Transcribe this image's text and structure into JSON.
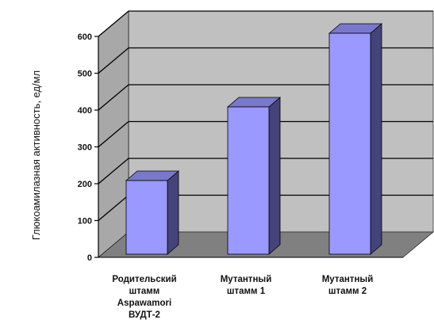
{
  "chart_data": {
    "type": "bar",
    "title": "",
    "xlabel": "",
    "ylabel": "Глюкоамилазная активность, ед/мл",
    "ylim": [
      0,
      600
    ],
    "yticks": [
      0,
      100,
      200,
      300,
      400,
      500,
      600
    ],
    "grid": true,
    "three_d": true,
    "categories": [
      [
        "Родительский",
        "штамм",
        "Aspawamori",
        "ВУДТ-2"
      ],
      [
        "Мутантный",
        "штамм 1"
      ],
      [
        "Мутантный",
        "штамм 2"
      ]
    ],
    "values": [
      200,
      400,
      600
    ],
    "colors": {
      "bar_front": "#9999ff",
      "bar_side": "#44447a",
      "bar_top": "#7878cc",
      "wall": "#c0c0c0",
      "floor": "#808080",
      "grid": "#000000"
    }
  }
}
